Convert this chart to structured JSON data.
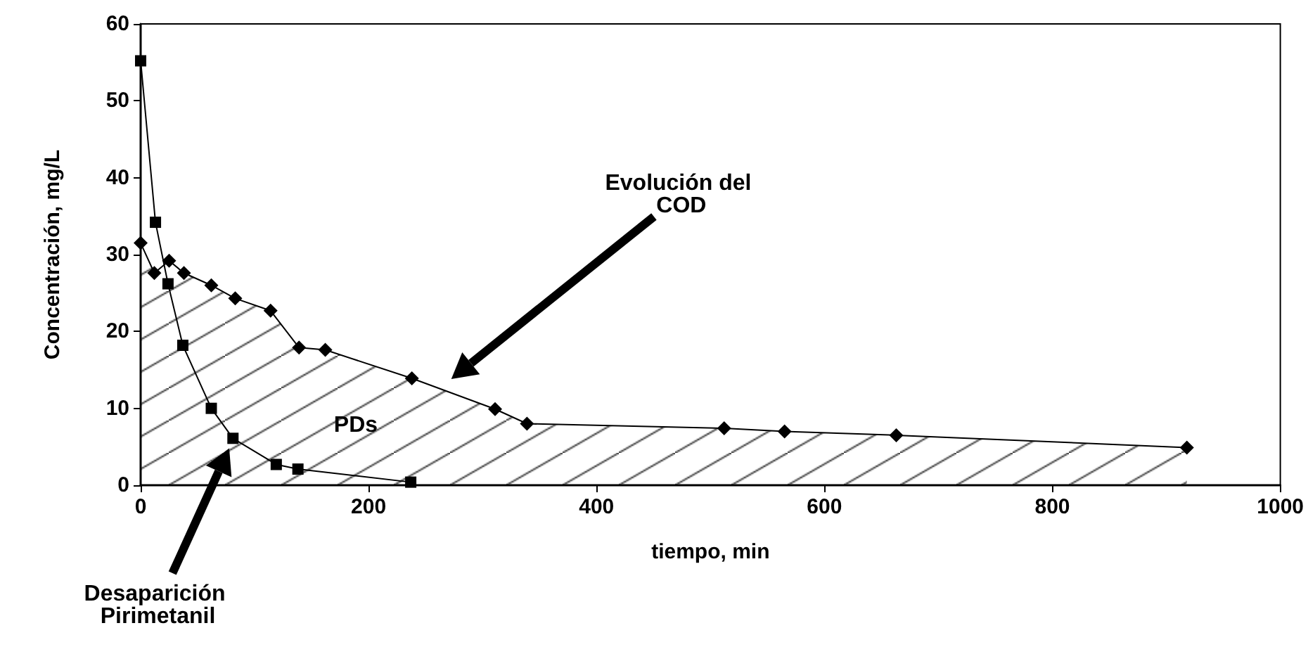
{
  "chart_data": {
    "type": "line",
    "xlabel": "tiempo, min",
    "ylabel": "Concentración, mg/L",
    "xlim": [
      0,
      1000
    ],
    "xticks": [
      0,
      200,
      400,
      600,
      800,
      1000
    ],
    "ylim": [
      0,
      60
    ],
    "yticks": [
      0,
      10,
      20,
      30,
      40,
      50,
      60
    ],
    "grid": false,
    "line_style": "solid",
    "series": [
      {
        "type": "area",
        "color": "#000000",
        "marker": "diamond",
        "x": [
          0,
          12,
          25,
          38,
          62,
          83,
          114,
          139,
          162,
          238,
          311,
          339,
          512,
          565,
          663,
          918
        ],
        "values": [
          31.5,
          27.6,
          29.2,
          27.6,
          26.0,
          24.3,
          22.7,
          17.9,
          17.6,
          13.9,
          9.9,
          8.0,
          7.4,
          7.0,
          6.5,
          4.9
        ]
      },
      {
        "color": "#000000",
        "marker": "square",
        "x": [
          0,
          13,
          24,
          37,
          62,
          81,
          119,
          138,
          237
        ],
        "values": [
          55.2,
          34.2,
          26.2,
          18.2,
          10.0,
          6.1,
          2.7,
          2.1,
          0.4
        ]
      }
    ],
    "annotations": [
      "Evolución del COD",
      "PDs",
      "Desaparición Pirimetanil"
    ]
  }
}
